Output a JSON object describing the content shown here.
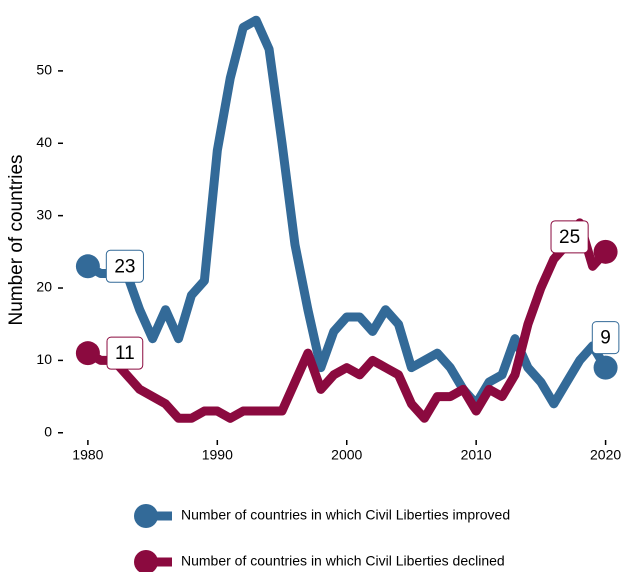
{
  "chart_data": {
    "type": "line",
    "y_label": "Number of countries",
    "x": [
      1980,
      1981,
      1982,
      1983,
      1984,
      1985,
      1986,
      1987,
      1988,
      1989,
      1990,
      1991,
      1992,
      1993,
      1994,
      1995,
      1996,
      1997,
      1998,
      1999,
      2000,
      2001,
      2002,
      2003,
      2004,
      2005,
      2006,
      2007,
      2008,
      2009,
      2010,
      2011,
      2012,
      2013,
      2014,
      2015,
      2016,
      2017,
      2018,
      2019,
      2020
    ],
    "series": [
      {
        "name": "Number of countries in which Civil Liberties improved",
        "color": "#336a98",
        "values": [
          23,
          22,
          22,
          22,
          17,
          13,
          17,
          13,
          19,
          21,
          39,
          49,
          56,
          57,
          53,
          40,
          26,
          17,
          9,
          14,
          16,
          16,
          14,
          17,
          15,
          9,
          10,
          11,
          9,
          6,
          4,
          7,
          8,
          13,
          9,
          7,
          4,
          7,
          10,
          12,
          9
        ]
      },
      {
        "name": "Number of countries in which Civil Liberties declined",
        "color": "#8b0a3f",
        "values": [
          11,
          10,
          10,
          8,
          6,
          5,
          4,
          2,
          2,
          3,
          3,
          2,
          3,
          3,
          3,
          3,
          7,
          11,
          6,
          8,
          9,
          8,
          10,
          9,
          8,
          4,
          2,
          5,
          5,
          6,
          3,
          6,
          5,
          8,
          15,
          20,
          24,
          26,
          29,
          23,
          25
        ]
      }
    ],
    "xlim": [
      1978,
      2021.5
    ],
    "ylim": [
      -1,
      58
    ],
    "xticks": [
      1980,
      1990,
      2000,
      2010,
      2020
    ],
    "yticks": [
      0,
      10,
      20,
      30,
      40,
      50
    ],
    "grid": false
  }
}
